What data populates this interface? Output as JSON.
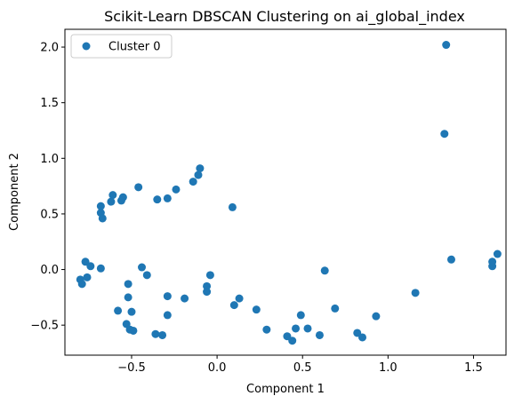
{
  "chart_data": {
    "type": "scatter",
    "title": "Scikit-Learn DBSCAN Clustering on ai_global_index",
    "xlabel": "Component 1",
    "ylabel": "Component 2",
    "xlim": [
      -0.89,
      1.69
    ],
    "ylim": [
      -0.77,
      2.16
    ],
    "xticks": [
      -0.5,
      0.0,
      0.5,
      1.0,
      1.5
    ],
    "xtick_labels": [
      "−0.5",
      "0.0",
      "0.5",
      "1.0",
      "1.5"
    ],
    "yticks": [
      -0.5,
      0.0,
      0.5,
      1.0,
      1.5,
      2.0
    ],
    "ytick_labels": [
      "−0.5",
      "0.0",
      "0.5",
      "1.0",
      "1.5",
      "2.0"
    ],
    "grid": false,
    "legend": "top-left",
    "color": "#1f77b4",
    "series": [
      {
        "name": "Cluster 0",
        "points": [
          [
            1.34,
            2.02
          ],
          [
            1.33,
            1.22
          ],
          [
            -0.1,
            0.91
          ],
          [
            -0.11,
            0.85
          ],
          [
            -0.14,
            0.79
          ],
          [
            -0.24,
            0.72
          ],
          [
            -0.46,
            0.74
          ],
          [
            -0.29,
            0.64
          ],
          [
            -0.35,
            0.63
          ],
          [
            -0.55,
            0.65
          ],
          [
            -0.56,
            0.62
          ],
          [
            -0.61,
            0.67
          ],
          [
            -0.62,
            0.61
          ],
          [
            -0.68,
            0.57
          ],
          [
            -0.68,
            0.51
          ],
          [
            -0.67,
            0.46
          ],
          [
            0.09,
            0.56
          ],
          [
            -0.77,
            0.07
          ],
          [
            -0.74,
            0.03
          ],
          [
            -0.68,
            0.01
          ],
          [
            -0.8,
            -0.09
          ],
          [
            -0.79,
            -0.13
          ],
          [
            -0.76,
            -0.07
          ],
          [
            -0.44,
            0.02
          ],
          [
            -0.41,
            -0.05
          ],
          [
            -0.52,
            -0.13
          ],
          [
            -0.52,
            -0.25
          ],
          [
            -0.58,
            -0.37
          ],
          [
            -0.5,
            -0.38
          ],
          [
            -0.53,
            -0.49
          ],
          [
            -0.51,
            -0.54
          ],
          [
            -0.49,
            -0.55
          ],
          [
            -0.36,
            -0.58
          ],
          [
            -0.32,
            -0.59
          ],
          [
            -0.29,
            -0.24
          ],
          [
            -0.29,
            -0.41
          ],
          [
            -0.19,
            -0.26
          ],
          [
            -0.06,
            -0.15
          ],
          [
            -0.06,
            -0.2
          ],
          [
            -0.04,
            -0.05
          ],
          [
            0.13,
            -0.26
          ],
          [
            0.1,
            -0.32
          ],
          [
            0.23,
            -0.36
          ],
          [
            0.29,
            -0.54
          ],
          [
            0.41,
            -0.6
          ],
          [
            0.44,
            -0.64
          ],
          [
            0.46,
            -0.53
          ],
          [
            0.49,
            -0.41
          ],
          [
            0.53,
            -0.53
          ],
          [
            0.6,
            -0.59
          ],
          [
            0.63,
            -0.01
          ],
          [
            0.69,
            -0.35
          ],
          [
            0.82,
            -0.57
          ],
          [
            0.85,
            -0.61
          ],
          [
            0.93,
            -0.42
          ],
          [
            1.16,
            -0.21
          ],
          [
            1.37,
            0.09
          ],
          [
            1.61,
            0.03
          ],
          [
            1.61,
            0.07
          ],
          [
            1.64,
            0.14
          ]
        ]
      }
    ]
  }
}
